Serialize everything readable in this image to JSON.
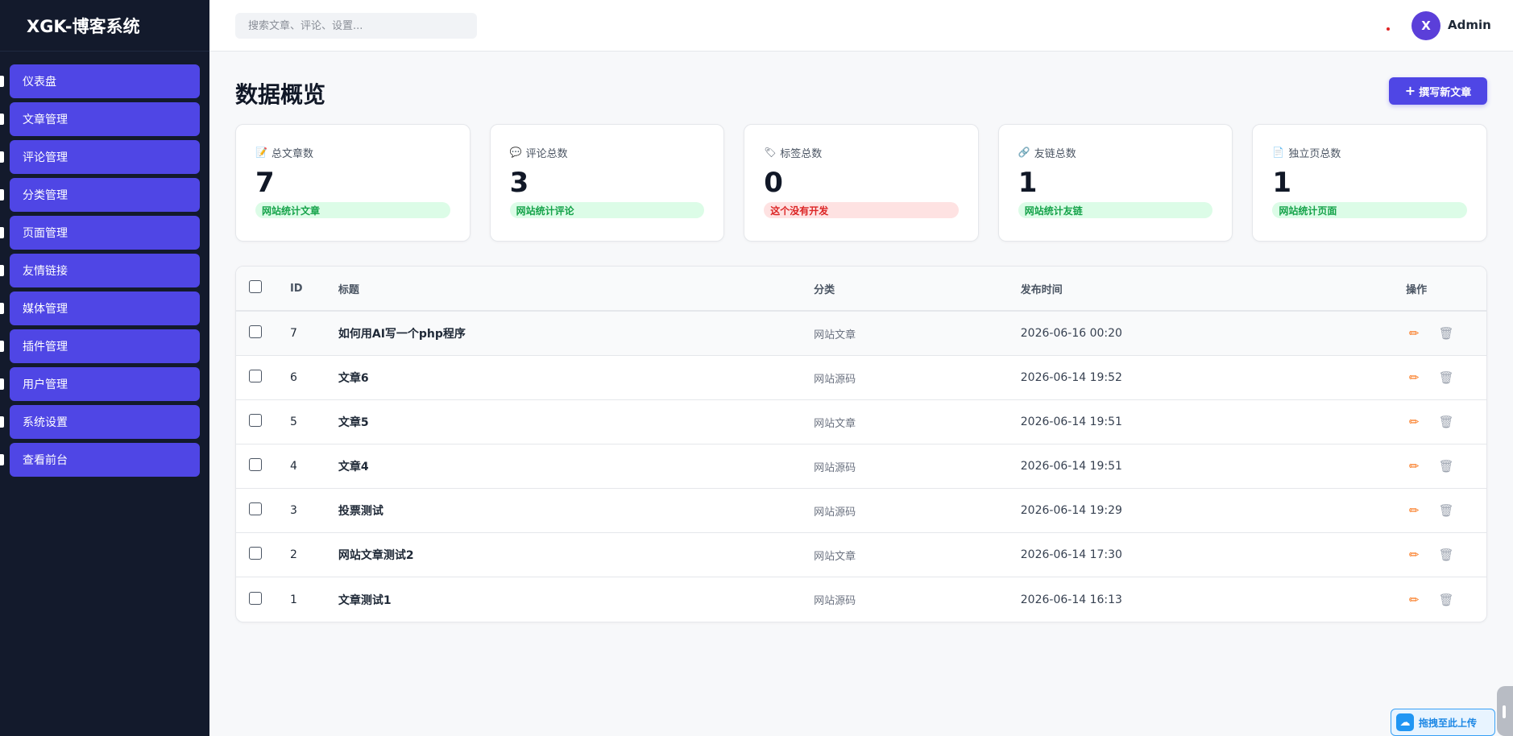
{
  "app": {
    "title": "XGK-博客系统"
  },
  "sidebar": {
    "items": [
      {
        "label": "仪表盘"
      },
      {
        "label": "文章管理"
      },
      {
        "label": "评论管理"
      },
      {
        "label": "分类管理"
      },
      {
        "label": "页面管理"
      },
      {
        "label": "友情链接"
      },
      {
        "label": "媒体管理"
      },
      {
        "label": "插件管理"
      },
      {
        "label": "用户管理"
      },
      {
        "label": "系统设置"
      },
      {
        "label": "查看前台"
      }
    ]
  },
  "topbar": {
    "search_placeholder": "搜索文章、评论、设置...",
    "avatar_initial": "X",
    "username": "Admin"
  },
  "main": {
    "page_title": "数据概览",
    "new_post_label": "撰写新文章",
    "new_post_icon": "+"
  },
  "stats": [
    {
      "icon": "📝",
      "icon_name": "edit-note-icon",
      "label": "总文章数",
      "value": "7",
      "badge": "网站统计文章",
      "status": "success"
    },
    {
      "icon": "💬",
      "icon_name": "comment-icon",
      "label": "评论总数",
      "value": "3",
      "badge": "网站统计评论",
      "status": "success"
    },
    {
      "icon": "🏷",
      "icon_name": "tag-icon",
      "label": "标签总数",
      "value": "0",
      "badge": "这个没有开发",
      "status": "danger"
    },
    {
      "icon": "🔗",
      "icon_name": "link-icon",
      "label": "友链总数",
      "value": "1",
      "badge": "网站统计友链",
      "status": "success"
    },
    {
      "icon": "📄",
      "icon_name": "page-icon",
      "label": "独立页总数",
      "value": "1",
      "badge": "网站统计页面",
      "status": "success"
    }
  ],
  "table": {
    "columns": {
      "id": "ID",
      "title": "标题",
      "category": "分类",
      "date": "发布时间",
      "ops": "操作"
    },
    "rows": [
      {
        "id": "7",
        "title": "如何用AI写一个php程序",
        "category": "网站文章",
        "date": "2026-06-16 00:20"
      },
      {
        "id": "6",
        "title": "文章6",
        "category": "网站源码",
        "date": "2026-06-14 19:52"
      },
      {
        "id": "5",
        "title": "文章5",
        "category": "网站文章",
        "date": "2026-06-14 19:51"
      },
      {
        "id": "4",
        "title": "文章4",
        "category": "网站源码",
        "date": "2026-06-14 19:51"
      },
      {
        "id": "3",
        "title": "投票测试",
        "category": "网站源码",
        "date": "2026-06-14 19:29"
      },
      {
        "id": "2",
        "title": "网站文章测试2",
        "category": "网站文章",
        "date": "2026-06-14 17:30"
      },
      {
        "id": "1",
        "title": "文章测试1",
        "category": "网站源码",
        "date": "2026-06-14 16:13"
      }
    ],
    "edit_icon": "✏",
    "delete_icon": "🗑"
  },
  "upload_widget": {
    "label": "拖拽至此上传",
    "icon": "☁"
  },
  "colors": {
    "sidebar_bg": "#131a2c",
    "accent": "#4f46e5",
    "success": "#16a34a",
    "danger": "#dc2626"
  }
}
